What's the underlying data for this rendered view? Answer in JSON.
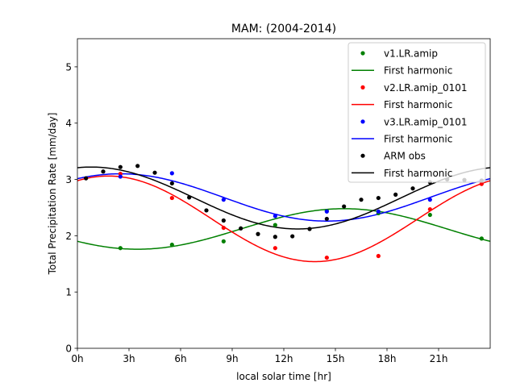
{
  "chart_data": {
    "type": "scatter",
    "title": "MAM: (2004-2014)",
    "xlabel": "local solar time [hr]",
    "ylabel": "Total Precipitation Rate [mm/day]",
    "xlim": [
      0,
      24
    ],
    "ylim": [
      0,
      5.5
    ],
    "xticks": [
      0,
      3,
      6,
      9,
      12,
      15,
      18,
      21
    ],
    "xtick_labels": [
      "0h",
      "3h",
      "6h",
      "9h",
      "12h",
      "15h",
      "18h",
      "21h"
    ],
    "yticks": [
      0,
      1,
      2,
      3,
      4,
      5
    ],
    "ytick_labels": [
      "0",
      "1",
      "2",
      "3",
      "4",
      "5"
    ],
    "grid": false,
    "legend_position": "top-right",
    "series": [
      {
        "name": "v1.LR.amip",
        "color": "#008000",
        "x": [
          2.5,
          5.5,
          8.5,
          11.5,
          14.5,
          17.5,
          20.5,
          23.5
        ],
        "y": [
          1.78,
          1.84,
          1.9,
          2.19,
          2.44,
          2.4,
          2.37,
          1.95
        ],
        "fit": {
          "name": "First harmonic",
          "mean": 2.12,
          "amplitude": 0.36,
          "peak_hour": 15.5
        }
      },
      {
        "name": "v2.LR.amip_0101",
        "color": "#ff0000",
        "x": [
          2.5,
          5.5,
          8.5,
          11.5,
          14.5,
          17.5,
          20.5,
          23.5
        ],
        "y": [
          3.1,
          2.67,
          2.14,
          1.78,
          1.61,
          1.64,
          2.47,
          2.92
        ],
        "fit": {
          "name": "First harmonic",
          "mean": 2.3,
          "amplitude": 0.76,
          "peak_hour": 1.8
        }
      },
      {
        "name": "v3.LR.amip_0101",
        "color": "#0000ff",
        "x": [
          2.5,
          5.5,
          8.5,
          11.5,
          14.5,
          17.5,
          20.5,
          23.5
        ],
        "y": [
          3.05,
          3.11,
          2.64,
          2.35,
          2.43,
          2.43,
          2.64,
          2.98
        ],
        "fit": {
          "name": "First harmonic",
          "mean": 2.68,
          "amplitude": 0.42,
          "peak_hour": 2.5
        }
      },
      {
        "name": "ARM obs",
        "color": "#000000",
        "x": [
          0.5,
          1.5,
          2.5,
          3.5,
          4.5,
          5.5,
          6.5,
          7.5,
          8.5,
          9.5,
          10.5,
          11.5,
          12.5,
          13.5,
          14.5,
          15.5,
          16.5,
          17.5,
          18.5,
          19.5,
          20.5,
          21.5,
          22.5,
          23.5
        ],
        "y": [
          3.02,
          3.14,
          3.22,
          3.24,
          3.12,
          2.93,
          2.68,
          2.45,
          2.27,
          2.13,
          2.03,
          1.98,
          1.99,
          2.12,
          2.3,
          2.52,
          2.64,
          2.67,
          2.73,
          2.84,
          2.95,
          3.0,
          2.99,
          2.98
        ],
        "fit": {
          "name": "First harmonic",
          "mean": 2.67,
          "amplitude": 0.55,
          "peak_hour": 0.8
        }
      }
    ]
  }
}
